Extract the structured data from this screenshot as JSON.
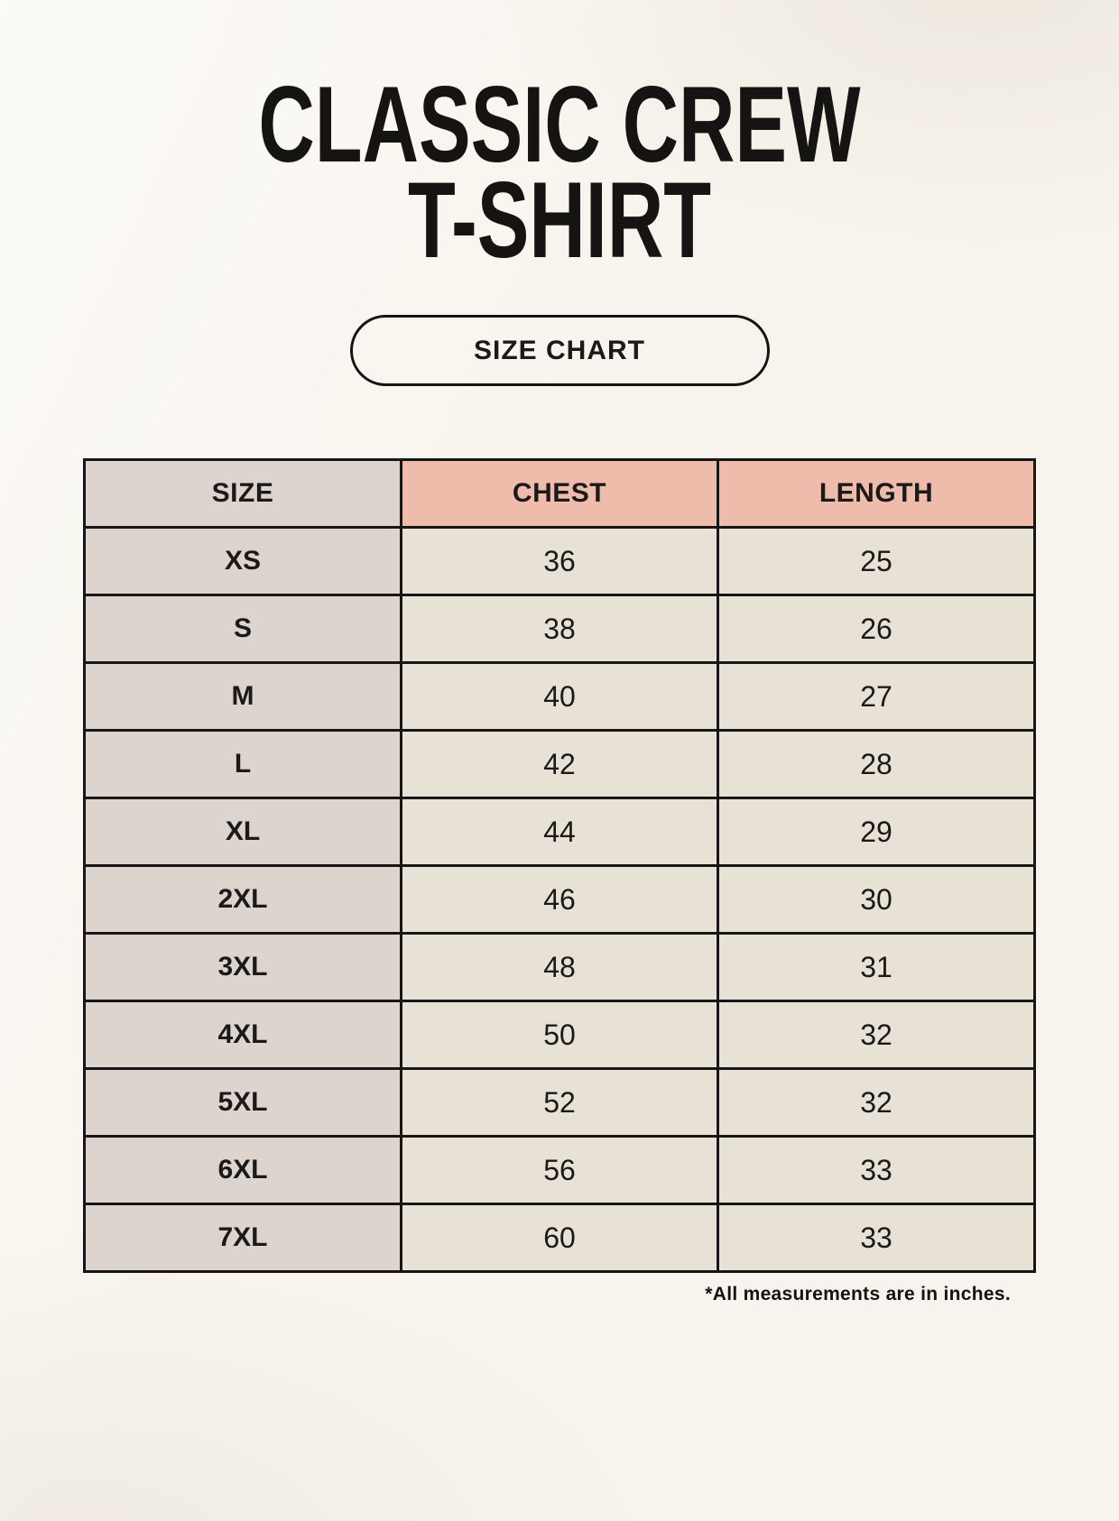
{
  "title": {
    "line1": "CLASSIC CREW",
    "line2": "T-SHIRT"
  },
  "badge": {
    "label": "SIZE CHART"
  },
  "chart_data": {
    "type": "table",
    "title": "Classic Crew T-Shirt Size Chart",
    "columns": [
      "SIZE",
      "CHEST",
      "LENGTH"
    ],
    "rows": [
      [
        "XS",
        36,
        25
      ],
      [
        "S",
        38,
        26
      ],
      [
        "M",
        40,
        27
      ],
      [
        "L",
        42,
        28
      ],
      [
        "XL",
        44,
        29
      ],
      [
        "2XL",
        46,
        30
      ],
      [
        "3XL",
        48,
        31
      ],
      [
        "4XL",
        50,
        32
      ],
      [
        "5XL",
        52,
        32
      ],
      [
        "6XL",
        56,
        33
      ],
      [
        "7XL",
        60,
        33
      ]
    ],
    "units_note": "*All measurements are in inches."
  },
  "footnote": "*All measurements are in inches.",
  "colors": {
    "background": "#f8f4ed",
    "accent_header": "#efbcab",
    "size_cell": "#ddd4cd",
    "value_cell": "#e8e1d5",
    "table_border": "#171515",
    "text": "#1a1a1a"
  }
}
